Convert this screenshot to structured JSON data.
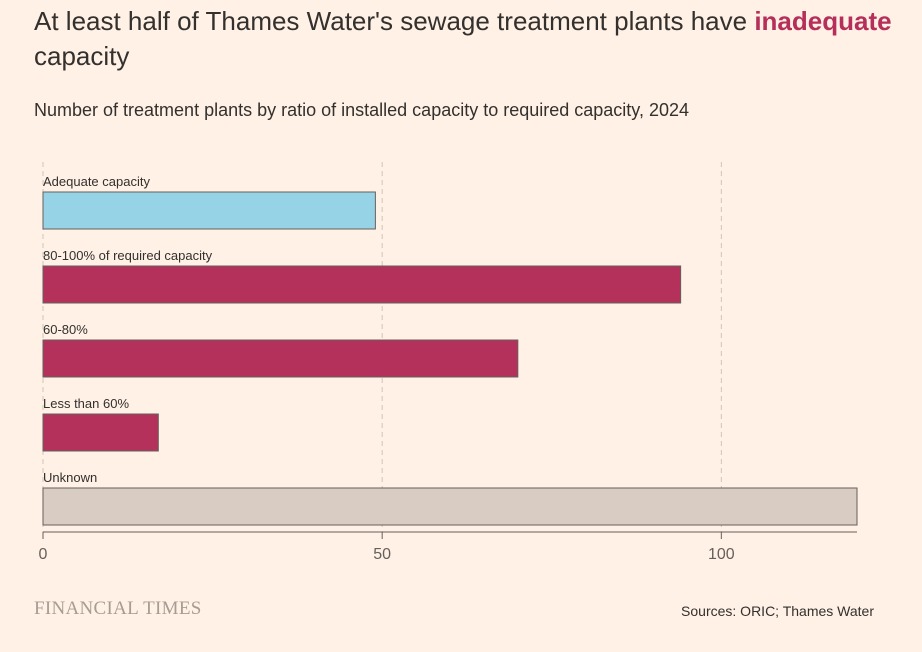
{
  "header": {
    "title_prefix": "At least half of Thames Water's sewage treatment plants have ",
    "title_highlight": "inadequate",
    "title_suffix": " capacity",
    "subtitle": "Number of treatment plants by ratio of installed capacity to required capacity, 2024"
  },
  "chart_data": {
    "type": "bar",
    "orientation": "horizontal",
    "title": "At least half of Thames Water's sewage treatment plants have inadequate capacity",
    "subtitle": "Number of treatment plants by ratio of installed capacity to required capacity, 2024",
    "categories": [
      "Adequate capacity",
      "80-100% of required capacity",
      "60-80%",
      "Less than 60%",
      "Unknown"
    ],
    "values": [
      49,
      94,
      70,
      17,
      120
    ],
    "colors": [
      "#96D3E6",
      "#B3315B",
      "#B3315B",
      "#B3315B",
      "#D9CCC3"
    ],
    "xlim": [
      0,
      120
    ],
    "xticks": [
      0,
      50,
      100
    ],
    "xtick_labels": [
      "0",
      "50",
      "100"
    ],
    "xlabel": "",
    "ylabel": "",
    "grid": true,
    "legend": "none"
  },
  "footer": {
    "logo": "FINANCIAL TIMES",
    "source": "Sources: ORIC; Thames Water"
  },
  "colors": {
    "background": "#FFF1E5",
    "highlight": "#B52F5A",
    "grid": "#CFC3B9",
    "axis": "#66605C"
  }
}
